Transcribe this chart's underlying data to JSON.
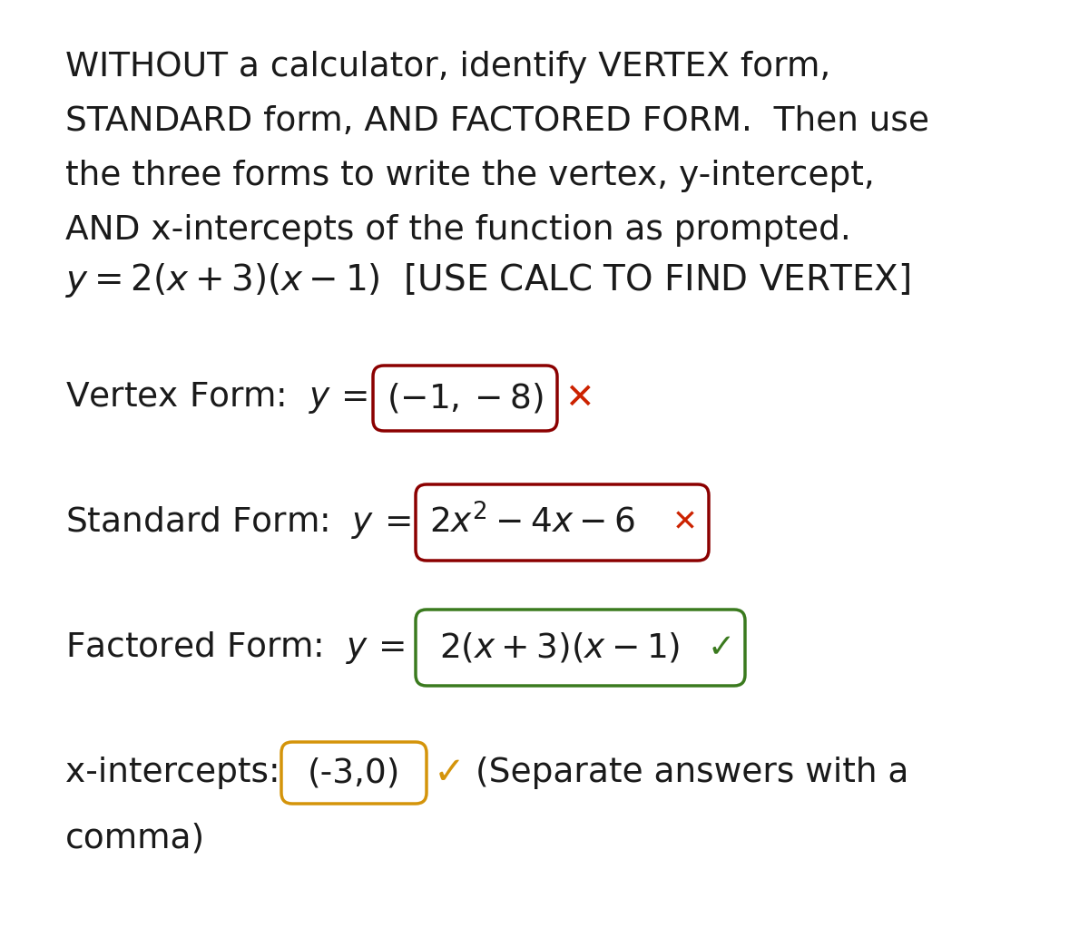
{
  "bg_color": "#ffffff",
  "text_color": "#1a1a1a",
  "dark_red": "#8B0000",
  "green": "#3a7a1e",
  "orange": "#d4940a",
  "red_x_color": "#cc2200",
  "green_check_color": "#3a7a1e",
  "orange_check_color": "#d4940a",
  "title_lines": [
    "WITHOUT a calculator, identify VERTEX form,",
    "STANDARD form, AND FACTORED FORM.  Then use",
    "the three forms to write the vertex, y-intercept,",
    "AND x-intercepts of the function as prompted."
  ],
  "figsize": [
    12,
    10.44
  ],
  "dpi": 100,
  "title_fontsize": 27,
  "body_fontsize": 27,
  "eq_fontsize": 28
}
